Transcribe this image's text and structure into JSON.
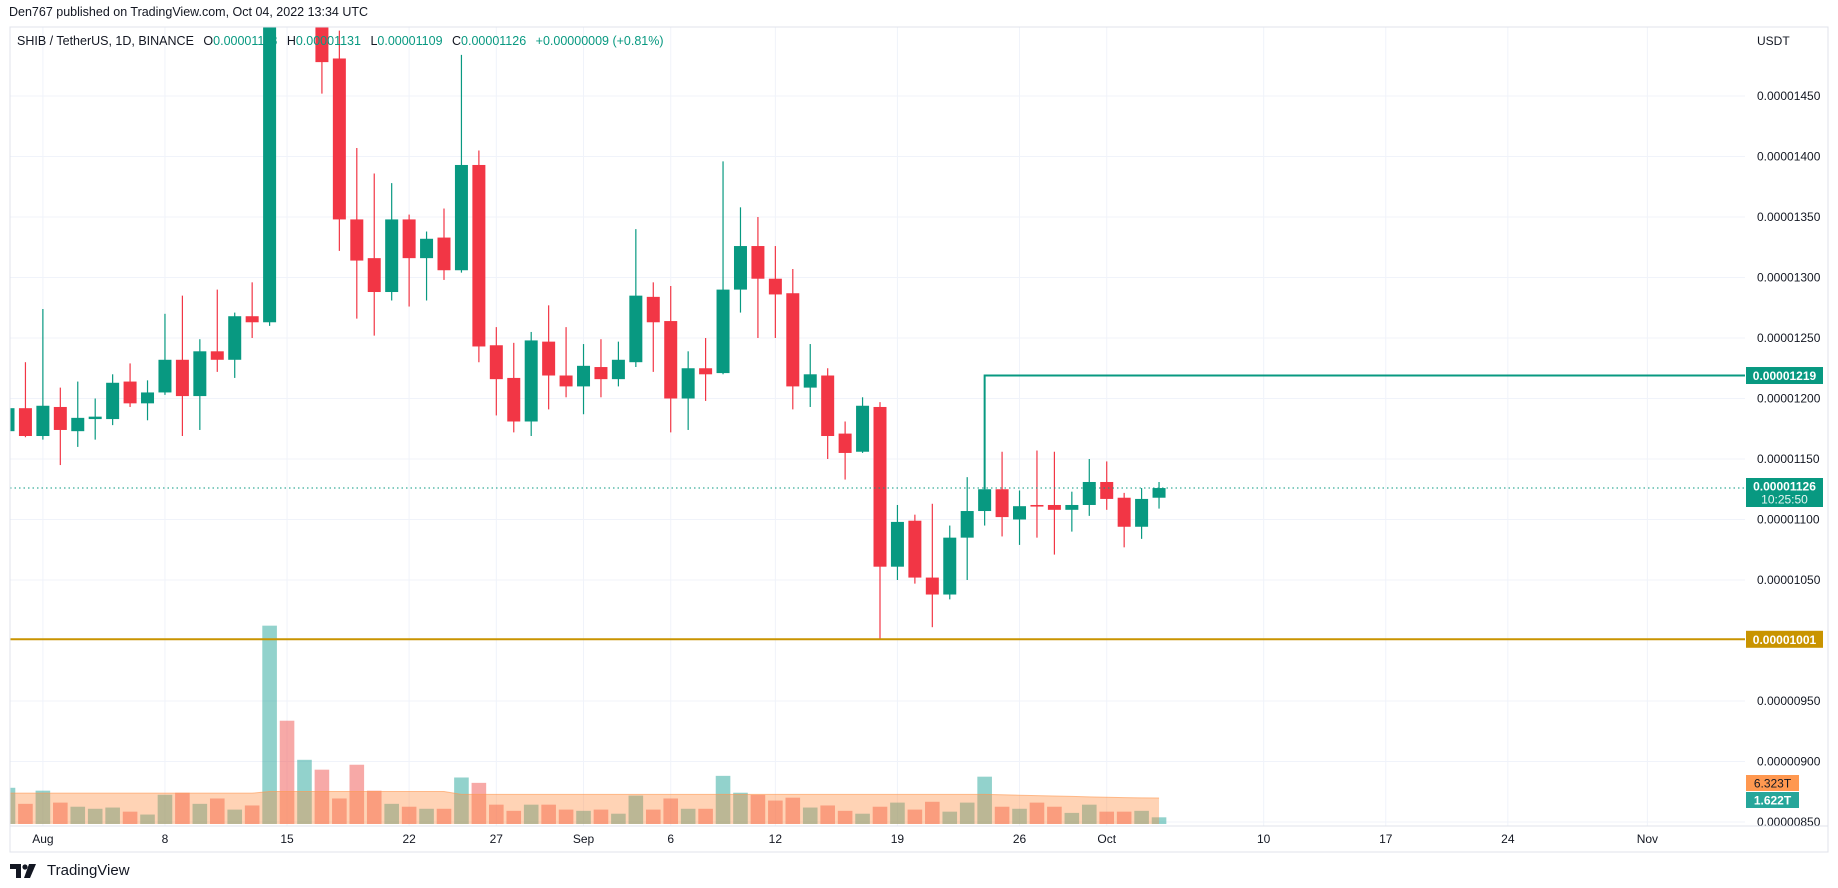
{
  "publish_line": "Den767 published on TradingView.com, Oct 04, 2022 13:34 UTC",
  "legend": {
    "symbol": "SHIB / TetherUS, 1D, BINANCE",
    "o_label": "O",
    "o": "0.00001118",
    "h_label": "H",
    "h": "0.00001131",
    "l_label": "L",
    "l": "0.00001109",
    "c_label": "C",
    "c": "0.00001126",
    "change": "+0.00000009 (+0.81%)"
  },
  "footer": {
    "brand": "TradingView",
    "logo_icon": "tradingview-logo-icon"
  },
  "colors": {
    "up": "#089981",
    "down": "#f23645",
    "resistance": "#089981",
    "support": "#c99400",
    "volume_ma": "#ff9850",
    "grid": "#f0f3fa"
  },
  "chart_data": {
    "type": "candlestick",
    "symbol": "SHIB / TetherUS",
    "interval": "1D",
    "exchange": "BINANCE",
    "currency_label": "USDT",
    "grid": true,
    "price_ticks": [
      "0.00001450",
      "0.00001400",
      "0.00001350",
      "0.00001300",
      "0.00001250",
      "0.00001200",
      "0.00001150",
      "0.00001100",
      "0.00001050",
      "0.00000950",
      "0.00000900",
      "0.00000850"
    ],
    "time_ticks": [
      {
        "label": "Aug",
        "date": "2022-08-01"
      },
      {
        "label": "8",
        "date": "2022-08-08"
      },
      {
        "label": "15",
        "date": "2022-08-15"
      },
      {
        "label": "22",
        "date": "2022-08-22"
      },
      {
        "label": "27",
        "date": "2022-08-27"
      },
      {
        "label": "Sep",
        "date": "2022-09-01"
      },
      {
        "label": "6",
        "date": "2022-09-06"
      },
      {
        "label": "12",
        "date": "2022-09-12"
      },
      {
        "label": "19",
        "date": "2022-09-19"
      },
      {
        "label": "26",
        "date": "2022-09-26"
      },
      {
        "label": "Oct",
        "date": "2022-10-01"
      },
      {
        "label": "10",
        "date": "2022-10-10"
      },
      {
        "label": "17",
        "date": "2022-10-17"
      },
      {
        "label": "24",
        "date": "2022-10-24"
      },
      {
        "label": "Nov",
        "date": "2022-11-01"
      }
    ],
    "candle_fields": [
      "date",
      "open",
      "high",
      "low",
      "close",
      "volume_T"
    ],
    "candles": [
      [
        "2022-07-30",
        1.173e-05,
        1.195e-05,
        1.168e-05,
        1.192e-05,
        8.8
      ],
      [
        "2022-07-31",
        1.192e-05,
        1.23e-05,
        1.168e-05,
        1.169e-05,
        4.9
      ],
      [
        "2022-08-01",
        1.169e-05,
        1.274e-05,
        1.166e-05,
        1.194e-05,
        8.1
      ],
      [
        "2022-08-02",
        1.193e-05,
        1.209e-05,
        1.145e-05,
        1.174e-05,
        5.2
      ],
      [
        "2022-08-03",
        1.173e-05,
        1.214e-05,
        1.16e-05,
        1.184e-05,
        4.2
      ],
      [
        "2022-08-04",
        1.183e-05,
        1.2e-05,
        1.166e-05,
        1.185e-05,
        3.7
      ],
      [
        "2022-08-05",
        1.183e-05,
        1.22e-05,
        1.178e-05,
        1.213e-05,
        4.0
      ],
      [
        "2022-08-06",
        1.214e-05,
        1.229e-05,
        1.193e-05,
        1.196e-05,
        3.0
      ],
      [
        "2022-08-07",
        1.196e-05,
        1.215e-05,
        1.182e-05,
        1.205e-05,
        2.3
      ],
      [
        "2022-08-08",
        1.205e-05,
        1.27e-05,
        1.203e-05,
        1.232e-05,
        7.1
      ],
      [
        "2022-08-09",
        1.232e-05,
        1.285e-05,
        1.169e-05,
        1.202e-05,
        7.6
      ],
      [
        "2022-08-10",
        1.202e-05,
        1.249e-05,
        1.174e-05,
        1.239e-05,
        4.9
      ],
      [
        "2022-08-11",
        1.239e-05,
        1.29e-05,
        1.222e-05,
        1.232e-05,
        6.2
      ],
      [
        "2022-08-12",
        1.232e-05,
        1.271e-05,
        1.217e-05,
        1.268e-05,
        3.5
      ],
      [
        "2022-08-13",
        1.268e-05,
        1.296e-05,
        1.25e-05,
        1.263e-05,
        4.5
      ],
      [
        "2022-08-14",
        1.263e-05,
        1.76e-05,
        1.26e-05,
        1.57e-05,
        48.2
      ],
      [
        "2022-08-15",
        1.57e-05,
        1.64e-05,
        1.515e-05,
        1.525e-05,
        25.1
      ],
      [
        "2022-08-16",
        1.525e-05,
        1.58e-05,
        1.51e-05,
        1.54e-05,
        15.6
      ],
      [
        "2022-08-17",
        1.54e-05,
        1.56e-05,
        1.452e-05,
        1.478e-05,
        13.2
      ],
      [
        "2022-08-18",
        1.481e-05,
        1.504e-05,
        1.322e-05,
        1.348e-05,
        6.2
      ],
      [
        "2022-08-19",
        1.348e-05,
        1.407e-05,
        1.266e-05,
        1.314e-05,
        14.4
      ],
      [
        "2022-08-20",
        1.316e-05,
        1.386e-05,
        1.252e-05,
        1.288e-05,
        8.1
      ],
      [
        "2022-08-21",
        1.288e-05,
        1.378e-05,
        1.281e-05,
        1.348e-05,
        4.9
      ],
      [
        "2022-08-22",
        1.348e-05,
        1.352e-05,
        1.276e-05,
        1.316e-05,
        4.2
      ],
      [
        "2022-08-23",
        1.316e-05,
        1.338e-05,
        1.281e-05,
        1.332e-05,
        3.7
      ],
      [
        "2022-08-24",
        1.333e-05,
        1.357e-05,
        1.298e-05,
        1.306e-05,
        3.7
      ],
      [
        "2022-08-25",
        1.306e-05,
        1.484e-05,
        1.304e-05,
        1.393e-05,
        11.3
      ],
      [
        "2022-08-26",
        1.393e-05,
        1.405e-05,
        1.23e-05,
        1.243e-05,
        10.0
      ],
      [
        "2022-08-27",
        1.244e-05,
        1.259e-05,
        1.186e-05,
        1.216e-05,
        4.7
      ],
      [
        "2022-08-28",
        1.217e-05,
        1.246e-05,
        1.172e-05,
        1.181e-05,
        3.2
      ],
      [
        "2022-08-29",
        1.181e-05,
        1.255e-05,
        1.169e-05,
        1.248e-05,
        4.7
      ],
      [
        "2022-08-30",
        1.247e-05,
        1.277e-05,
        1.191e-05,
        1.219e-05,
        4.7
      ],
      [
        "2022-08-31",
        1.219e-05,
        1.259e-05,
        1.201e-05,
        1.21e-05,
        3.5
      ],
      [
        "2022-09-01",
        1.21e-05,
        1.245e-05,
        1.187e-05,
        1.227e-05,
        3.2
      ],
      [
        "2022-09-02",
        1.226e-05,
        1.249e-05,
        1.201e-05,
        1.216e-05,
        3.5
      ],
      [
        "2022-09-03",
        1.216e-05,
        1.247e-05,
        1.21e-05,
        1.232e-05,
        2.5
      ],
      [
        "2022-09-04",
        1.23e-05,
        1.34e-05,
        1.226e-05,
        1.285e-05,
        6.9
      ],
      [
        "2022-09-05",
        1.284e-05,
        1.296e-05,
        1.222e-05,
        1.263e-05,
        3.5
      ],
      [
        "2022-09-06",
        1.264e-05,
        1.293e-05,
        1.172e-05,
        1.2e-05,
        6.2
      ],
      [
        "2022-09-07",
        1.2e-05,
        1.239e-05,
        1.174e-05,
        1.225e-05,
        3.7
      ],
      [
        "2022-09-08",
        1.225e-05,
        1.25e-05,
        1.198e-05,
        1.22e-05,
        3.7
      ],
      [
        "2022-09-09",
        1.221e-05,
        1.396e-05,
        1.22e-05,
        1.29e-05,
        11.7
      ],
      [
        "2022-09-10",
        1.29e-05,
        1.358e-05,
        1.271e-05,
        1.326e-05,
        7.6
      ],
      [
        "2022-09-11",
        1.326e-05,
        1.35e-05,
        1.25e-05,
        1.299e-05,
        7.1
      ],
      [
        "2022-09-12",
        1.299e-05,
        1.326e-05,
        1.25e-05,
        1.286e-05,
        5.7
      ],
      [
        "2022-09-13",
        1.287e-05,
        1.307e-05,
        1.191e-05,
        1.21e-05,
        6.4
      ],
      [
        "2022-09-14",
        1.209e-05,
        1.245e-05,
        1.193e-05,
        1.22e-05,
        4.0
      ],
      [
        "2022-09-15",
        1.219e-05,
        1.225e-05,
        1.15e-05,
        1.169e-05,
        4.5
      ],
      [
        "2022-09-16",
        1.171e-05,
        1.181e-05,
        1.133e-05,
        1.155e-05,
        3.2
      ],
      [
        "2022-09-17",
        1.156e-05,
        1.201e-05,
        1.155e-05,
        1.194e-05,
        2.5
      ],
      [
        "2022-09-18",
        1.193e-05,
        1.197e-05,
        1.001e-05,
        1.061e-05,
        4.2
      ],
      [
        "2022-09-19",
        1.061e-05,
        1.112e-05,
        1.05e-05,
        1.098e-05,
        5.2
      ],
      [
        "2022-09-20",
        1.099e-05,
        1.104e-05,
        1.047e-05,
        1.052e-05,
        3.5
      ],
      [
        "2022-09-21",
        1.052e-05,
        1.113e-05,
        1.011e-05,
        1.038e-05,
        5.4
      ],
      [
        "2022-09-22",
        1.038e-05,
        1.095e-05,
        1.034e-05,
        1.085e-05,
        3.0
      ],
      [
        "2022-09-23",
        1.085e-05,
        1.135e-05,
        1.05e-05,
        1.107e-05,
        5.2
      ],
      [
        "2022-09-24",
        1.107e-05,
        1.125e-05,
        1.095e-05,
        1.125e-05,
        11.5
      ],
      [
        "2022-09-25",
        1.125e-05,
        1.156e-05,
        1.086e-05,
        1.102e-05,
        4.2
      ],
      [
        "2022-09-26",
        1.1e-05,
        1.124e-05,
        1.079e-05,
        1.111e-05,
        3.7
      ],
      [
        "2022-09-27",
        1.112e-05,
        1.157e-05,
        1.085e-05,
        1.111e-05,
        5.2
      ],
      [
        "2022-09-28",
        1.112e-05,
        1.156e-05,
        1.071e-05,
        1.108e-05,
        4.2
      ],
      [
        "2022-09-29",
        1.108e-05,
        1.123e-05,
        1.09e-05,
        1.112e-05,
        2.7
      ],
      [
        "2022-09-30",
        1.112e-05,
        1.15e-05,
        1.103e-05,
        1.131e-05,
        4.7
      ],
      [
        "2022-10-01",
        1.131e-05,
        1.148e-05,
        1.108e-05,
        1.117e-05,
        3.0
      ],
      [
        "2022-10-02",
        1.118e-05,
        1.122e-05,
        1.077e-05,
        1.094e-05,
        3.0
      ],
      [
        "2022-10-03",
        1.094e-05,
        1.126e-05,
        1.084e-05,
        1.117e-05,
        3.2
      ],
      [
        "2022-10-04",
        1.118e-05,
        1.131e-05,
        1.109e-05,
        1.126e-05,
        1.622
      ]
    ],
    "volume_ma_T": [
      7.5,
      7.5,
      7.5,
      7.5,
      7.5,
      7.5,
      7.5,
      7.5,
      7.5,
      7.5,
      7.5,
      7.5,
      7.5,
      7.5,
      7.5,
      7.9,
      7.9,
      7.9,
      7.9,
      7.9,
      7.9,
      7.9,
      7.9,
      7.9,
      7.9,
      7.9,
      7.2,
      7.2,
      7.2,
      7.2,
      7.2,
      7.2,
      7.2,
      7.2,
      7.2,
      7.2,
      7.2,
      7.2,
      7.2,
      7.2,
      7.2,
      7.2,
      7.2,
      7.2,
      7.2,
      7.2,
      7.2,
      7.2,
      7.2,
      7.2,
      7.2,
      7.2,
      7.2,
      7.2,
      7.2,
      7.2,
      7.2,
      7.1,
      7.0,
      6.9,
      6.8,
      6.7,
      6.6,
      6.5,
      6.4,
      6.35,
      6.323
    ],
    "levels": [
      {
        "price": 1.219e-05,
        "label": "0.00001219",
        "color": "#089981",
        "start_date": "2022-09-24"
      },
      {
        "price": 1.001e-05,
        "label": "0.00001001",
        "color": "#c99400",
        "start_date": "2022-07-30"
      }
    ],
    "last_price": {
      "price": 1.126e-05,
      "label": "0.00001126",
      "countdown": "10:25:50"
    },
    "volume_labels": {
      "ma": "6.323T",
      "last": "1.622T"
    }
  }
}
